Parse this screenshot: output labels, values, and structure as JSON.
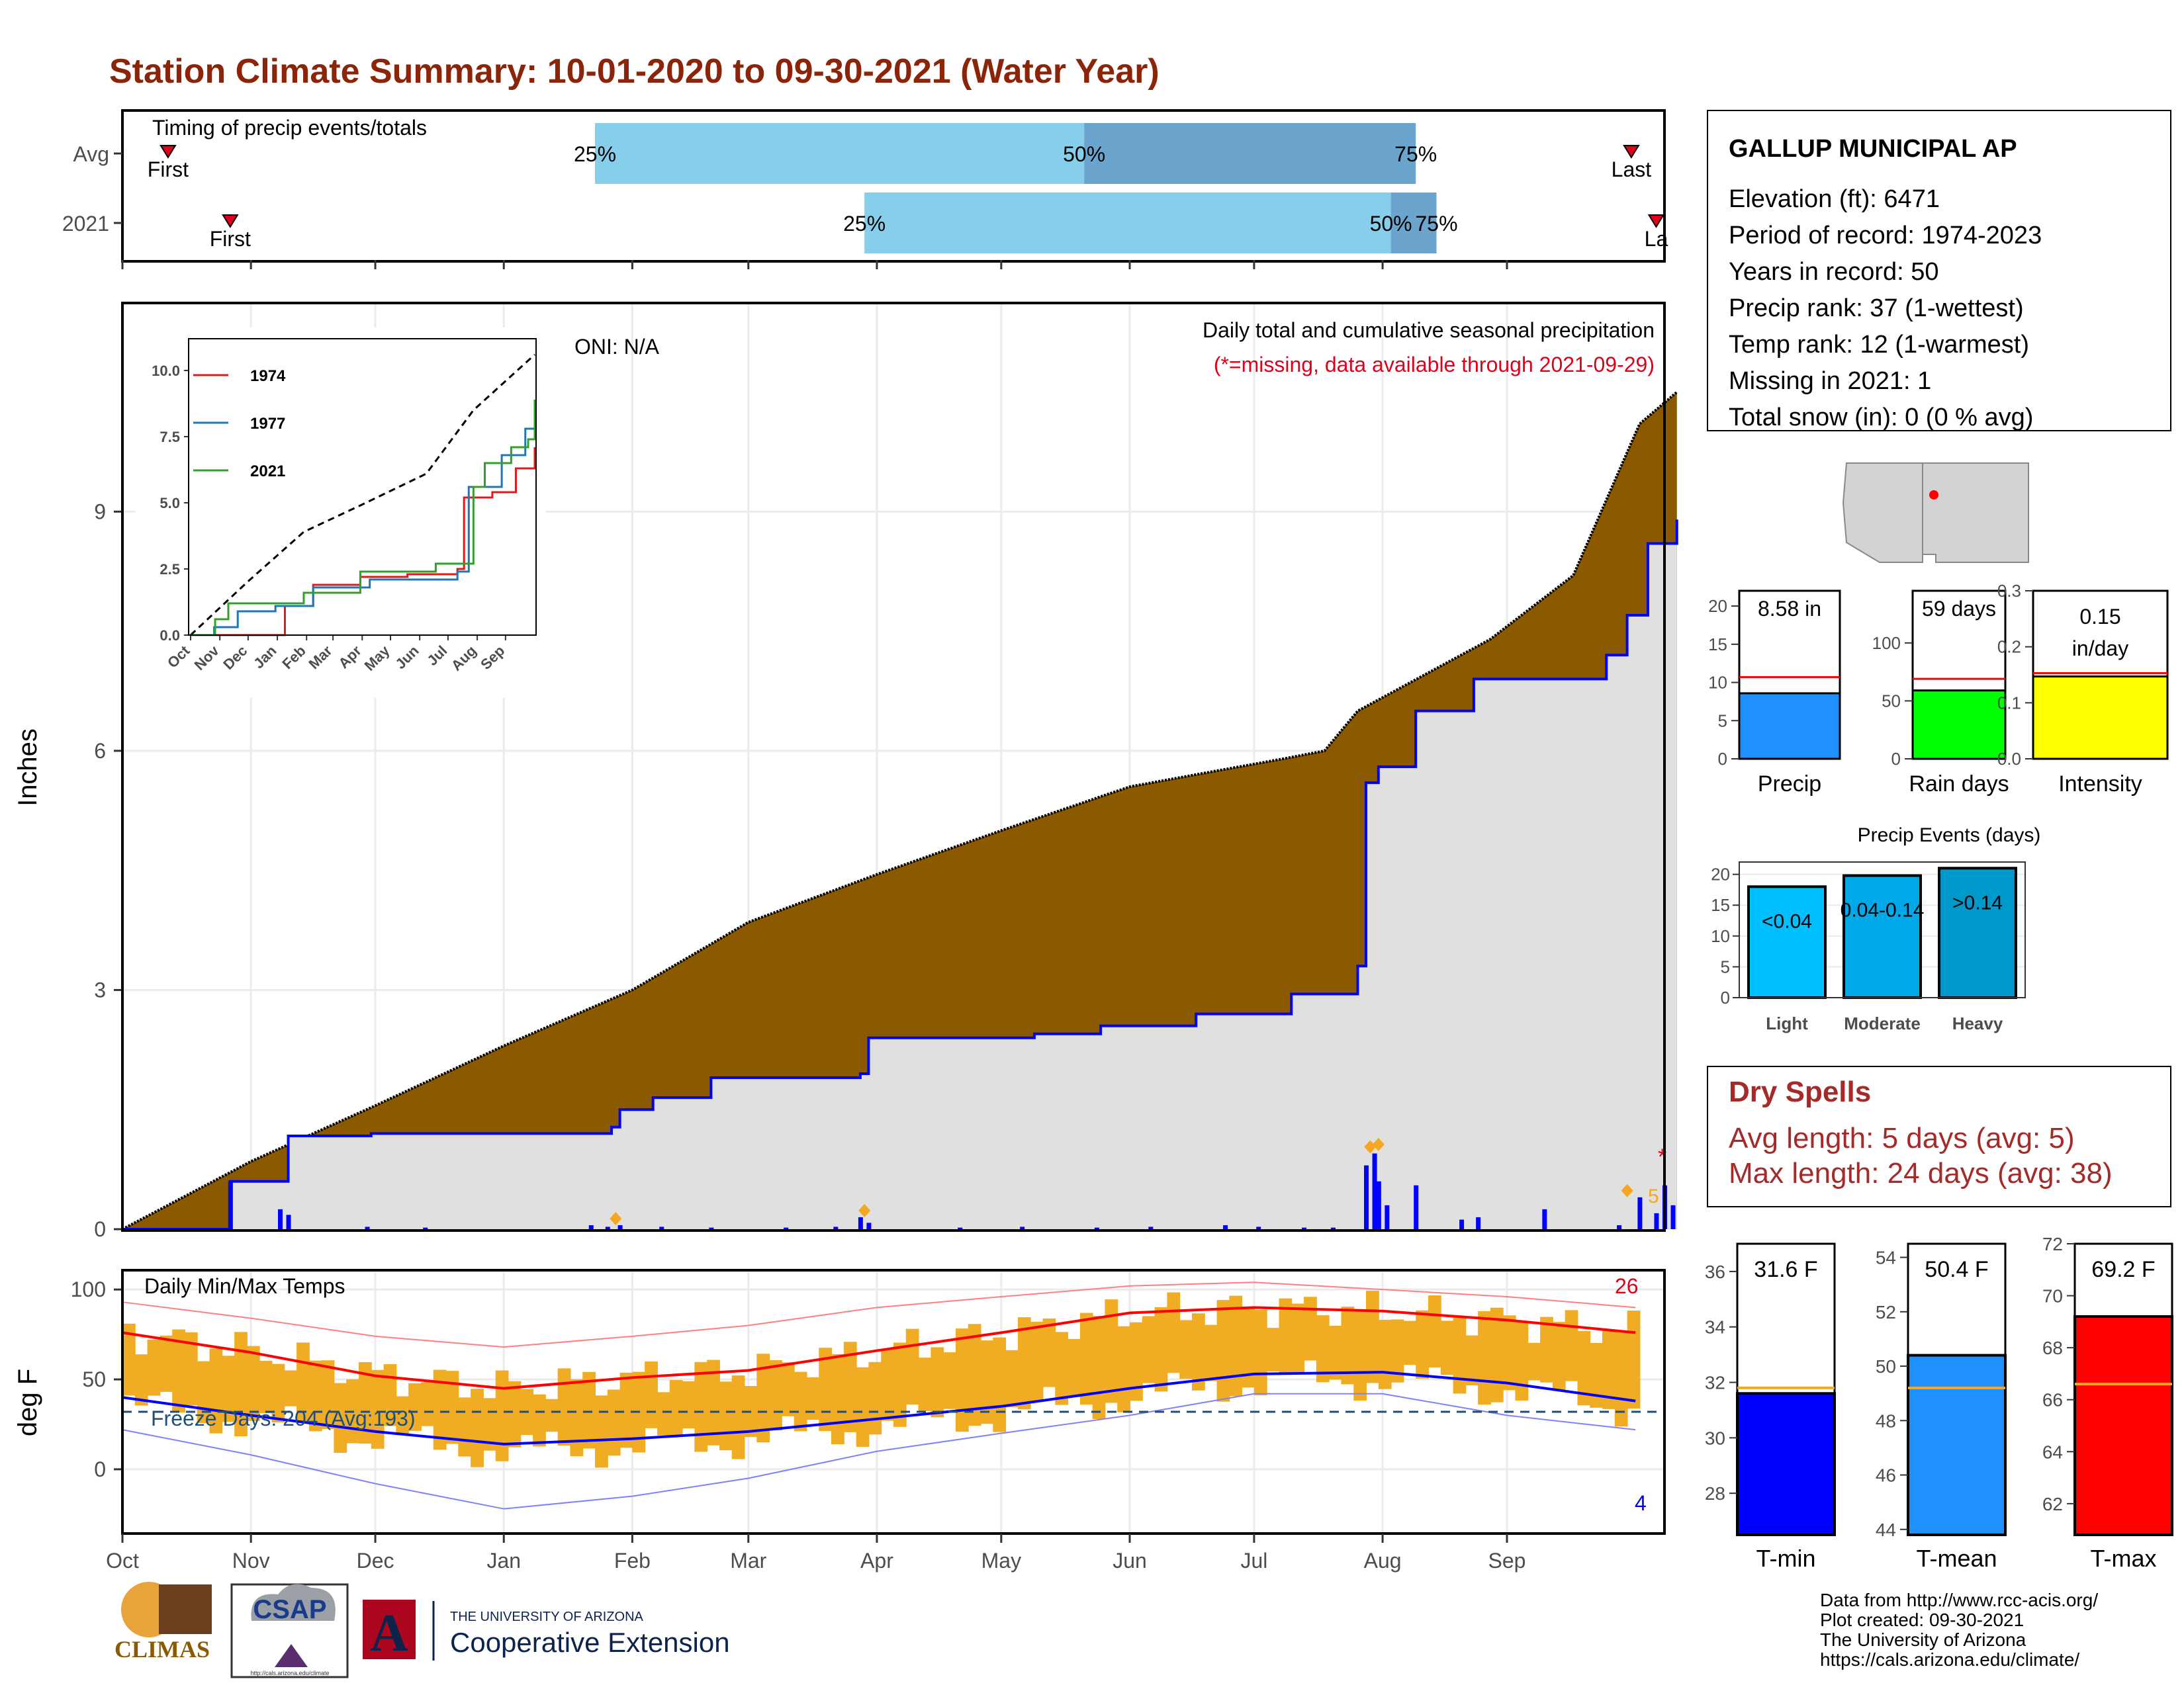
{
  "title": "Station Climate Summary: 10-01-2020 to 09-30-2021 (Water Year)",
  "months": [
    "Oct",
    "Nov",
    "Dec",
    "Jan",
    "Feb",
    "Mar",
    "Apr",
    "May",
    "Jun",
    "Jul",
    "Aug",
    "Sep"
  ],
  "timing": {
    "label": "Timing of precip events/totals",
    "rows": [
      {
        "name": "Avg",
        "first_label": "First",
        "last_label": "Last",
        "first_day": 11,
        "last_day": 364,
        "p25_day": 114,
        "p50_day": 232,
        "p75_day": 312,
        "p25_label": "25%",
        "p50_label": "50%",
        "p75_label": "75%"
      },
      {
        "name": "2021",
        "first_label": "First",
        "last_label": "La",
        "first_day": 26,
        "last_day": 370,
        "p25_day": 179,
        "p50_day": 306,
        "p75_day": 317,
        "p25_label": "25%",
        "p50_label": "50%",
        "p75_label": "75%"
      }
    ],
    "colors": {
      "early": "#87ceeb",
      "late": "#6ba4cc",
      "marker": "#e0001b"
    }
  },
  "precip": {
    "ylabel": "Inches",
    "yticks": [
      0,
      3,
      6,
      9
    ],
    "ylim": [
      0,
      11.6
    ],
    "oni_label": "ONI: N/A",
    "subtitle": "Daily total and cumulative seasonal precipitation",
    "missing_note": "(*=missing, data available through 2021-09-29)",
    "missing_marker": "*",
    "late_count_label": "5",
    "avg_cum": [
      [
        0,
        0
      ],
      [
        31,
        0.85
      ],
      [
        61,
        1.55
      ],
      [
        92,
        2.3
      ],
      [
        123,
        3.0
      ],
      [
        151,
        3.85
      ],
      [
        182,
        4.45
      ],
      [
        212,
        5.0
      ],
      [
        243,
        5.55
      ],
      [
        264,
        5.75
      ],
      [
        280,
        5.9
      ],
      [
        290,
        6.0
      ],
      [
        298,
        6.5
      ],
      [
        330,
        7.4
      ],
      [
        350,
        8.2
      ],
      [
        366,
        10.1
      ],
      [
        375,
        10.5
      ]
    ],
    "yr_cum": [
      [
        0,
        0
      ],
      [
        25,
        0
      ],
      [
        26,
        0.6
      ],
      [
        36,
        0.6
      ],
      [
        40,
        1.17
      ],
      [
        60,
        1.2
      ],
      [
        118,
        1.28
      ],
      [
        120,
        1.5
      ],
      [
        128,
        1.65
      ],
      [
        142,
        1.9
      ],
      [
        178,
        1.95
      ],
      [
        180,
        2.4
      ],
      [
        220,
        2.45
      ],
      [
        236,
        2.55
      ],
      [
        259,
        2.7
      ],
      [
        282,
        2.95
      ],
      [
        298,
        3.3
      ],
      [
        300,
        5.6
      ],
      [
        303,
        5.8
      ],
      [
        312,
        6.5
      ],
      [
        326,
        6.9
      ],
      [
        342,
        6.9
      ],
      [
        358,
        7.2
      ],
      [
        363,
        7.7
      ],
      [
        368,
        8.6
      ],
      [
        375,
        8.9
      ]
    ],
    "daily_bars": [
      [
        26,
        0.6
      ],
      [
        38,
        0.25
      ],
      [
        40,
        0.18
      ],
      [
        59,
        0.03
      ],
      [
        73,
        0.02
      ],
      [
        113,
        0.05
      ],
      [
        117,
        0.03
      ],
      [
        120,
        0.05
      ],
      [
        130,
        0.03
      ],
      [
        142,
        0.02
      ],
      [
        160,
        0.02
      ],
      [
        172,
        0.03
      ],
      [
        178,
        0.15
      ],
      [
        180,
        0.08
      ],
      [
        202,
        0.02
      ],
      [
        217,
        0.03
      ],
      [
        235,
        0.02
      ],
      [
        248,
        0.03
      ],
      [
        266,
        0.05
      ],
      [
        274,
        0.03
      ],
      [
        285,
        0.02
      ],
      [
        292,
        0.02
      ],
      [
        300,
        0.8
      ],
      [
        302,
        0.95
      ],
      [
        303,
        0.6
      ],
      [
        305,
        0.3
      ],
      [
        312,
        0.55
      ],
      [
        323,
        0.12
      ],
      [
        327,
        0.15
      ],
      [
        343,
        0.25
      ],
      [
        361,
        0.05
      ],
      [
        366,
        0.4
      ],
      [
        370,
        0.2
      ],
      [
        372,
        0.55
      ],
      [
        374,
        0.3
      ]
    ],
    "event_markers": [
      [
        119,
        0.05
      ],
      [
        179,
        0.15
      ],
      [
        301,
        0.95
      ],
      [
        303,
        0.98
      ],
      [
        363,
        0.4
      ]
    ],
    "colors": {
      "fill_avg": "#8b5a00",
      "fill_yr": "#e0e0e0",
      "yr_line": "#0000ff",
      "bars": "#0000ff",
      "markers": "#f5a623",
      "note": "#e0001b"
    }
  },
  "inset": {
    "yticks": [
      "0.0",
      "2.5",
      "5.0",
      "7.5",
      "10.0"
    ],
    "legend": [
      {
        "name": "1974",
        "color": "#e31a1c"
      },
      {
        "name": "1977",
        "color": "#1f78b4"
      },
      {
        "name": "2021",
        "color": "#33a02c"
      }
    ],
    "avg_line": [
      [
        0,
        0
      ],
      [
        60,
        2.0
      ],
      [
        120,
        3.9
      ],
      [
        180,
        4.9
      ],
      [
        250,
        6.1
      ],
      [
        300,
        8.5
      ],
      [
        365,
        10.6
      ]
    ],
    "s1974": [
      [
        0,
        0
      ],
      [
        95,
        0
      ],
      [
        100,
        1.1
      ],
      [
        130,
        1.9
      ],
      [
        180,
        2.2
      ],
      [
        230,
        2.3
      ],
      [
        283,
        2.5
      ],
      [
        290,
        5.2
      ],
      [
        320,
        5.4
      ],
      [
        345,
        6.3
      ],
      [
        365,
        7.1
      ]
    ],
    "s1977": [
      [
        0,
        0
      ],
      [
        25,
        0.3
      ],
      [
        50,
        0.9
      ],
      [
        90,
        1.1
      ],
      [
        130,
        1.8
      ],
      [
        190,
        2.1
      ],
      [
        283,
        2.4
      ],
      [
        295,
        5.6
      ],
      [
        330,
        6.8
      ],
      [
        355,
        7.8
      ],
      [
        365,
        8.4
      ]
    ],
    "s2021": [
      [
        0,
        0
      ],
      [
        26,
        0.6
      ],
      [
        40,
        1.2
      ],
      [
        120,
        1.6
      ],
      [
        180,
        2.4
      ],
      [
        260,
        2.7
      ],
      [
        300,
        5.6
      ],
      [
        312,
        6.5
      ],
      [
        340,
        7.1
      ],
      [
        358,
        7.4
      ],
      [
        365,
        8.9
      ]
    ]
  },
  "temps": {
    "label": "Daily Min/Max Temps",
    "ylabel": "deg F",
    "yticks": [
      0,
      50,
      100
    ],
    "ylim": [
      -35,
      110
    ],
    "freeze_label": "Freeze Days: 204 (Avg:193)",
    "freeze_line": 32,
    "hot_count_label": "26",
    "cold_count_label": "4",
    "avg_max": [
      [
        0,
        76
      ],
      [
        31,
        65
      ],
      [
        61,
        52
      ],
      [
        92,
        45
      ],
      [
        123,
        51
      ],
      [
        151,
        55
      ],
      [
        182,
        66
      ],
      [
        212,
        76
      ],
      [
        243,
        87
      ],
      [
        273,
        90
      ],
      [
        304,
        88
      ],
      [
        334,
        83
      ],
      [
        365,
        76
      ]
    ],
    "avg_min": [
      [
        0,
        40
      ],
      [
        31,
        30
      ],
      [
        61,
        21
      ],
      [
        92,
        14
      ],
      [
        123,
        17
      ],
      [
        151,
        21
      ],
      [
        182,
        28
      ],
      [
        212,
        35
      ],
      [
        243,
        45
      ],
      [
        273,
        53
      ],
      [
        304,
        54
      ],
      [
        334,
        48
      ],
      [
        365,
        38
      ]
    ],
    "rec_high": [
      [
        0,
        93
      ],
      [
        31,
        84
      ],
      [
        61,
        74
      ],
      [
        92,
        68
      ],
      [
        123,
        74
      ],
      [
        151,
        80
      ],
      [
        182,
        90
      ],
      [
        212,
        96
      ],
      [
        243,
        102
      ],
      [
        273,
        104
      ],
      [
        304,
        100
      ],
      [
        334,
        96
      ],
      [
        365,
        90
      ]
    ],
    "rec_low": [
      [
        0,
        22
      ],
      [
        31,
        8
      ],
      [
        61,
        -8
      ],
      [
        92,
        -22
      ],
      [
        123,
        -15
      ],
      [
        151,
        -5
      ],
      [
        182,
        10
      ],
      [
        212,
        20
      ],
      [
        243,
        30
      ],
      [
        273,
        42
      ],
      [
        304,
        42
      ],
      [
        334,
        30
      ],
      [
        365,
        22
      ]
    ],
    "colors": {
      "band": "#f0ad23",
      "avg_max": "#ff0000",
      "avg_min": "#0000ff",
      "rec": "#ff8080",
      "recl": "#8080ff",
      "freeze": "#1f4e79"
    }
  },
  "station": {
    "name": "GALLUP MUNICIPAL AP",
    "lines": [
      "Elevation (ft): 6471",
      "Period of record: 1974-2023",
      "Years in record: 50",
      "Precip rank: 37 (1-wettest)",
      "Temp rank: 12 (1-warmest)",
      "Missing in 2021: 1",
      "Total snow (in): 0 (0 % avg)"
    ]
  },
  "bars_summary": [
    {
      "label": "Precip",
      "value_label": "8.58 in",
      "value": 8.58,
      "avg": 10.7,
      "yticks": [
        "0",
        "5",
        "10",
        "15",
        "20"
      ],
      "ymax": 22,
      "color": "#1e90ff"
    },
    {
      "label": "Rain days",
      "value_label": "59 days",
      "value": 59,
      "avg": 69,
      "yticks": [
        "0",
        "50",
        "100"
      ],
      "ymax": 145,
      "color": "#00ff00"
    },
    {
      "label": "Intensity",
      "value_label": "0.15 in/day",
      "value": 0.147,
      "avg": 0.153,
      "yticks": [
        "0.0",
        "0.1",
        "0.2",
        "0.3"
      ],
      "ymax": 0.3,
      "color": "#ffff00"
    }
  ],
  "events": {
    "title": "Precip Events (days)",
    "yticks": [
      "0",
      "5",
      "10",
      "15",
      "20"
    ],
    "bars": [
      {
        "label": "Light",
        "value": 18,
        "value_label": "<0.04",
        "color": "#00bfff"
      },
      {
        "label": "Moderate",
        "value": 19.8,
        "value_label": "0.04-0.14",
        "color": "#00a8e8"
      },
      {
        "label": "Heavy",
        "value": 21,
        "value_label": ">0.14",
        "color": "#0099cc"
      }
    ]
  },
  "dry_spells": {
    "title": "Dry Spells",
    "lines": [
      "Avg length: 5 days (avg: 5)",
      "Max length: 24 days (avg: 38)"
    ]
  },
  "temp_bars": [
    {
      "label": "T-min",
      "value_label": "31.6 F",
      "value": 31.6,
      "avg": 31.8,
      "yticks": [
        28,
        30,
        32,
        34,
        36
      ],
      "ylim": [
        26.5,
        37
      ],
      "color": "#0000ff"
    },
    {
      "label": "T-mean",
      "value_label": "50.4 F",
      "value": 50.4,
      "avg": 49.2,
      "yticks": [
        44,
        46,
        48,
        50,
        52,
        54
      ],
      "ylim": [
        43.8,
        54.5
      ],
      "color": "#1e90ff"
    },
    {
      "label": "T-max",
      "value_label": "69.2 F",
      "value": 69.2,
      "avg": 66.6,
      "yticks": [
        62,
        64,
        66,
        68,
        70,
        72
      ],
      "ylim": [
        60.8,
        72
      ],
      "color": "#ff0000"
    }
  ],
  "footer": {
    "lines": [
      "Data from http://www.rcc-acis.org/",
      "Plot created: 09-30-2021",
      "The University of Arizona",
      "https://cals.arizona.edu/climate/"
    ],
    "climas": "CLIMAS",
    "csap": "CSAP",
    "csap_url": "http://cals.arizona.edu/climate",
    "ua_small": "THE UNIVERSITY OF ARIZONA",
    "ua_big": "Cooperative Extension",
    "ua_letter": "A"
  }
}
